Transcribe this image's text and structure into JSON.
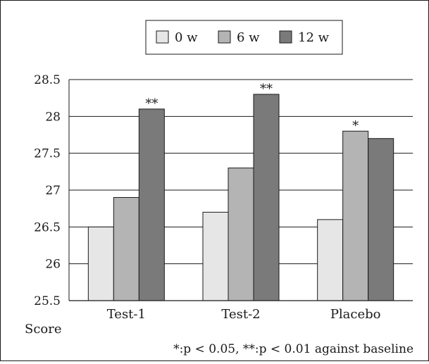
{
  "chart_data": {
    "type": "bar",
    "categories": [
      "Test-1",
      "Test-2",
      "Placebo"
    ],
    "series": [
      {
        "name": "0 w",
        "values": [
          26.5,
          26.7,
          26.6
        ],
        "color": "#e6e6e6"
      },
      {
        "name": "6 w",
        "values": [
          26.9,
          27.3,
          27.8
        ],
        "color": "#b4b4b4"
      },
      {
        "name": "12 w",
        "values": [
          28.1,
          28.3,
          27.7
        ],
        "color": "#7a7a7a"
      }
    ],
    "ylim": [
      25.5,
      28.5
    ],
    "yticks": [
      25.5,
      26,
      26.5,
      27,
      27.5,
      28,
      28.5
    ],
    "ytick_labels": [
      "25.5",
      "26",
      "26.5",
      "27",
      "27.5",
      "28",
      "28.5"
    ],
    "ylabel": "Score",
    "xlabel": "",
    "title": "",
    "grid": "horizontal",
    "legend_position": "top-center",
    "annotations": [
      {
        "category": 0,
        "series": 2,
        "text": "**"
      },
      {
        "category": 1,
        "series": 2,
        "text": "**"
      },
      {
        "category": 2,
        "series": 1,
        "text": "*"
      }
    ],
    "footnote": "*:p < 0.05, **:p < 0.01 against baseline"
  }
}
